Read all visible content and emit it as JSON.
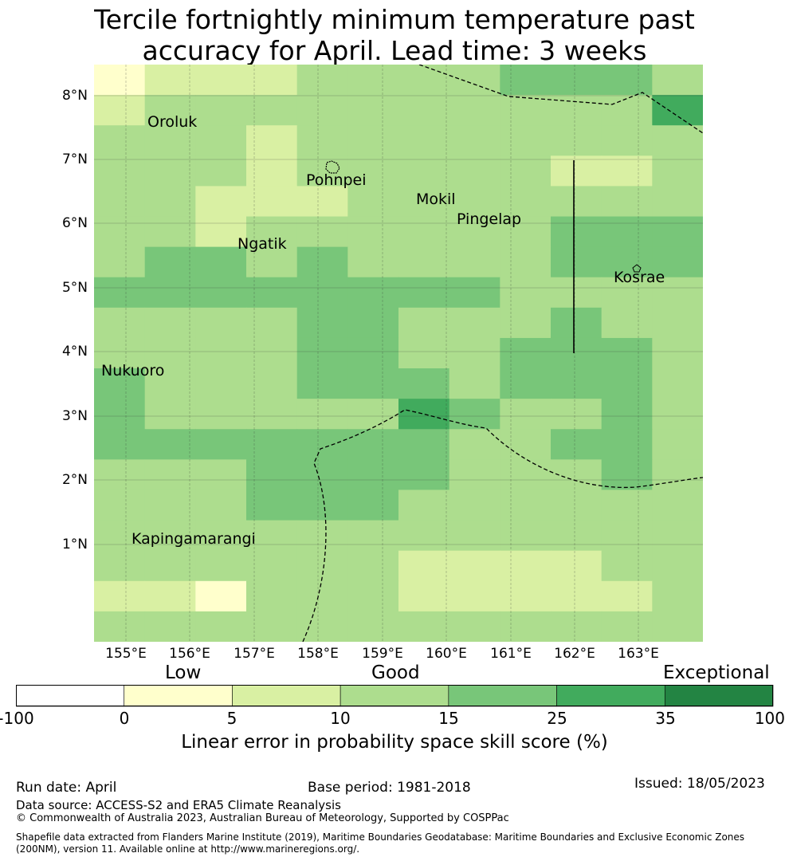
{
  "title": {
    "line1": "Tercile fortnightly minimum temperature past",
    "line2": "accuracy for April. Lead time: 3 weeks"
  },
  "map": {
    "lat_labels": [
      "8°N",
      "7°N",
      "6°N",
      "5°N",
      "4°N",
      "3°N",
      "2°N",
      "1°N"
    ],
    "lon_labels": [
      "155°E",
      "156°E",
      "157°E",
      "158°E",
      "159°E",
      "160°E",
      "161°E",
      "162°E",
      "163°E"
    ],
    "places": [
      "Oroluk",
      "Pohnpei",
      "Mokil",
      "Pingelap",
      "Ngatik",
      "Kosrae",
      "Nukuoro",
      "Kapingamarangi"
    ],
    "grid_skill_classes": [
      "122233334443",
      "233333333335",
      "333233333333",
      "333233333223",
      "332223333333",
      "332333333444",
      "344343333444",
      "444444443333",
      "333344333433",
      "333344334443",
      "433344434443",
      "433333543343",
      "444444433443",
      "333444433343",
      "333444333333",
      "333333333333",
      "333333222233",
      "221333222223",
      "333333333333"
    ]
  },
  "legend": {
    "categories": [
      "Low",
      "Good",
      "Exceptional"
    ],
    "tick_labels": [
      "-100",
      "0",
      "5",
      "10",
      "15",
      "25",
      "35",
      "100"
    ],
    "colors": [
      "#ffffff",
      "#ffffcc",
      "#d9f0a3",
      "#addd8e",
      "#78c679",
      "#41ab5d",
      "#238443"
    ],
    "title": "Linear error in probability space skill score (%)"
  },
  "footer": {
    "run_date": "Run date: April",
    "base_period": "Base period: 1981-2018",
    "issued": "Issued: 18/05/2023",
    "data_source": "Data source: ACCESS-S2 and ERA5 Climate Reanalysis",
    "copyright": "© Commonwealth of Australia 2023, Australian Bureau of Meteorology, Supported by COSPPac",
    "shapefile_line1": "Shapefile data extracted from Flanders Marine Institute (2019), Maritime Boundaries Geodatabase: Maritime Boundaries and Exclusive Economic Zones",
    "shapefile_line2": "(200NM), version 11. Available online at http://www.marineregions.org/."
  }
}
